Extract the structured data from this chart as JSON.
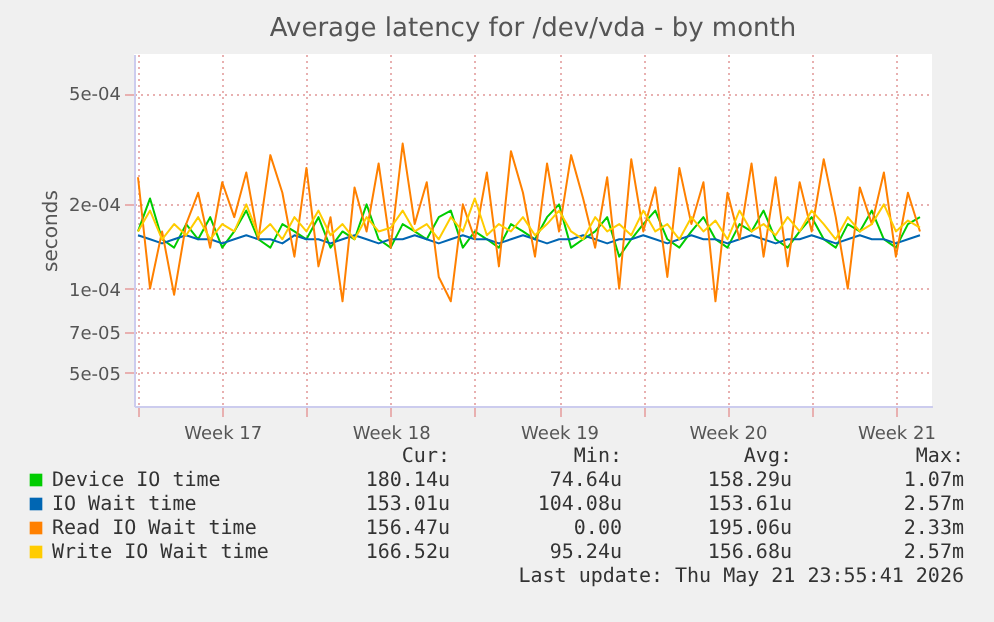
{
  "chart_data": {
    "type": "line",
    "title": "Average latency for /dev/vda - by month",
    "ylabel": "seconds",
    "log": true,
    "grid": true,
    "legend": "bottom",
    "marker": "none",
    "line_style": "solid",
    "ylim": [
      3.8e-05,
      0.00069
    ],
    "yticks": [
      {
        "value": 5e-05,
        "label": "5e-05"
      },
      {
        "value": 7e-05,
        "label": "7e-05"
      },
      {
        "value": 0.0001,
        "label": "1e-04"
      },
      {
        "value": 0.0002,
        "label": "2e-04"
      },
      {
        "value": 0.0005,
        "label": "5e-04"
      }
    ],
    "xlim": [
      "2026-04-19T20:00",
      "2026-05-23T00:00"
    ],
    "xticks": [
      {
        "value": "2026-04-20T00:00",
        "label": null
      },
      {
        "value": "2026-04-23T12:00",
        "label": "Week 17"
      },
      {
        "value": "2026-04-27T00:00",
        "label": null
      },
      {
        "value": "2026-04-30T12:00",
        "label": "Week 18"
      },
      {
        "value": "2026-05-04T00:00",
        "label": null
      },
      {
        "value": "2026-05-07T12:00",
        "label": "Week 19"
      },
      {
        "value": "2026-05-11T00:00",
        "label": null
      },
      {
        "value": "2026-05-14T12:00",
        "label": "Week 20"
      },
      {
        "value": "2026-05-18T00:00",
        "label": null
      },
      {
        "value": "2026-05-21T12:00",
        "label": "Week 21"
      }
    ],
    "x": [
      "2026-04-20T00:00",
      "2026-04-20T12:00",
      "2026-04-21T00:00",
      "2026-04-21T12:00",
      "2026-04-22T00:00",
      "2026-04-22T12:00",
      "2026-04-23T00:00",
      "2026-04-23T12:00",
      "2026-04-24T00:00",
      "2026-04-24T12:00",
      "2026-04-25T00:00",
      "2026-04-25T12:00",
      "2026-04-26T00:00",
      "2026-04-26T12:00",
      "2026-04-27T00:00",
      "2026-04-27T12:00",
      "2026-04-28T00:00",
      "2026-04-28T12:00",
      "2026-04-29T00:00",
      "2026-04-29T12:00",
      "2026-04-30T00:00",
      "2026-04-30T12:00",
      "2026-05-01T00:00",
      "2026-05-01T12:00",
      "2026-05-02T00:00",
      "2026-05-02T12:00",
      "2026-05-03T00:00",
      "2026-05-03T12:00",
      "2026-05-04T00:00",
      "2026-05-04T12:00",
      "2026-05-05T00:00",
      "2026-05-05T12:00",
      "2026-05-06T00:00",
      "2026-05-06T12:00",
      "2026-05-07T00:00",
      "2026-05-07T12:00",
      "2026-05-08T00:00",
      "2026-05-08T12:00",
      "2026-05-09T00:00",
      "2026-05-09T12:00",
      "2026-05-10T00:00",
      "2026-05-10T12:00",
      "2026-05-11T00:00",
      "2026-05-11T12:00",
      "2026-05-12T00:00",
      "2026-05-12T12:00",
      "2026-05-13T00:00",
      "2026-05-13T12:00",
      "2026-05-14T00:00",
      "2026-05-14T12:00",
      "2026-05-15T00:00",
      "2026-05-15T12:00",
      "2026-05-16T00:00",
      "2026-05-16T12:00",
      "2026-05-17T00:00",
      "2026-05-17T12:00",
      "2026-05-18T00:00",
      "2026-05-18T12:00",
      "2026-05-19T00:00",
      "2026-05-19T12:00",
      "2026-05-20T00:00",
      "2026-05-20T12:00",
      "2026-05-21T00:00",
      "2026-05-21T12:00",
      "2026-05-22T00:00",
      "2026-05-22T12:00"
    ],
    "series": [
      {
        "name": "Device IO time",
        "color": "#00cc00",
        "values": [
          0.00016,
          0.00021,
          0.00015,
          0.00014,
          0.00017,
          0.00015,
          0.00018,
          0.00014,
          0.00016,
          0.00019,
          0.00015,
          0.00014,
          0.00017,
          0.00016,
          0.00015,
          0.00018,
          0.00014,
          0.00016,
          0.00015,
          0.0002,
          0.00015,
          0.00014,
          0.00017,
          0.00016,
          0.00015,
          0.00018,
          0.00019,
          0.00014,
          0.00016,
          0.00015,
          0.00014,
          0.00017,
          0.00016,
          0.00015,
          0.00018,
          0.0002,
          0.00014,
          0.00015,
          0.00016,
          0.00018,
          0.00013,
          0.00015,
          0.00017,
          0.00019,
          0.00015,
          0.00014,
          0.00016,
          0.00018,
          0.00015,
          0.00014,
          0.00017,
          0.00016,
          0.00019,
          0.00015,
          0.00014,
          0.00016,
          0.00018,
          0.00015,
          0.00014,
          0.00017,
          0.00016,
          0.00019,
          0.00015,
          0.00014,
          0.00017,
          0.00018
        ]
      },
      {
        "name": "IO Wait time",
        "color": "#0066b3",
        "values": [
          0.000155,
          0.00015,
          0.000145,
          0.00015,
          0.000155,
          0.00015,
          0.00015,
          0.000145,
          0.00015,
          0.000155,
          0.00015,
          0.00015,
          0.000145,
          0.000155,
          0.00015,
          0.00015,
          0.000145,
          0.00015,
          0.000155,
          0.00015,
          0.000145,
          0.00015,
          0.00015,
          0.000155,
          0.00015,
          0.000145,
          0.00015,
          0.000155,
          0.00015,
          0.00015,
          0.000145,
          0.00015,
          0.000155,
          0.00015,
          0.000145,
          0.00015,
          0.00015,
          0.000155,
          0.00015,
          0.000145,
          0.00015,
          0.00015,
          0.000155,
          0.00015,
          0.000145,
          0.00015,
          0.000155,
          0.00015,
          0.00015,
          0.000145,
          0.00015,
          0.000155,
          0.00015,
          0.000145,
          0.00015,
          0.00015,
          0.000155,
          0.00015,
          0.000145,
          0.00015,
          0.000155,
          0.00015,
          0.00015,
          0.000145,
          0.00015,
          0.000155
        ]
      },
      {
        "name": "Read IO Wait time",
        "color": "#ff8000",
        "values": [
          0.00025,
          0.0001,
          0.00016,
          9.5e-05,
          0.00017,
          0.00022,
          0.00014,
          0.00024,
          0.00018,
          0.00026,
          0.00015,
          0.0003,
          0.00022,
          0.00013,
          0.00027,
          0.00012,
          0.00018,
          9e-05,
          0.00023,
          0.00016,
          0.00028,
          0.00014,
          0.00033,
          0.00017,
          0.00024,
          0.00011,
          9e-05,
          0.0002,
          0.00015,
          0.00026,
          0.00012,
          0.00031,
          0.00022,
          0.00013,
          0.00028,
          0.00016,
          0.0003,
          0.00021,
          0.00014,
          0.00025,
          0.0001,
          0.00029,
          0.00016,
          0.00023,
          0.00011,
          0.00027,
          0.00017,
          0.00024,
          9e-05,
          0.00022,
          0.00015,
          0.00028,
          0.00013,
          0.00025,
          0.00012,
          0.00024,
          0.00016,
          0.00029,
          0.00018,
          0.0001,
          0.00023,
          0.00017,
          0.00026,
          0.00013,
          0.00022,
          0.00016
        ]
      },
      {
        "name": "Write IO Wait time",
        "color": "#ffcc00",
        "values": [
          0.00016,
          0.00019,
          0.00015,
          0.00017,
          0.000155,
          0.00018,
          0.00015,
          0.00017,
          0.00016,
          0.0002,
          0.000155,
          0.00017,
          0.00015,
          0.00018,
          0.00016,
          0.00019,
          0.000155,
          0.00017,
          0.00015,
          0.00018,
          0.00016,
          0.000165,
          0.00019,
          0.00016,
          0.00017,
          0.00015,
          0.00018,
          0.00016,
          0.00021,
          0.000155,
          0.00017,
          0.00016,
          0.00018,
          0.000155,
          0.00017,
          0.00019,
          0.00016,
          0.00015,
          0.00018,
          0.00016,
          0.00017,
          0.000155,
          0.00019,
          0.00016,
          0.00017,
          0.00015,
          0.00018,
          0.00016,
          0.000175,
          0.00015,
          0.00019,
          0.00016,
          0.00017,
          0.000155,
          0.00018,
          0.00016,
          0.00019,
          0.00017,
          0.00015,
          0.00018,
          0.00016,
          0.00017,
          0.0002,
          0.00016,
          0.000175,
          0.000165
        ]
      }
    ],
    "annotations": [
      "Cur:",
      "Min:",
      "Avg:",
      "Max:",
      "180.14u",
      "74.64u",
      "158.29u",
      "1.07m",
      "153.01u",
      "104.08u",
      "153.61u",
      "2.57m",
      "156.47u",
      "0.00",
      "195.06u",
      "2.33m",
      "166.52u",
      "95.24u",
      "156.68u",
      "2.57m",
      "Last update: Thu May 21 23:55:41 2026"
    ]
  }
}
